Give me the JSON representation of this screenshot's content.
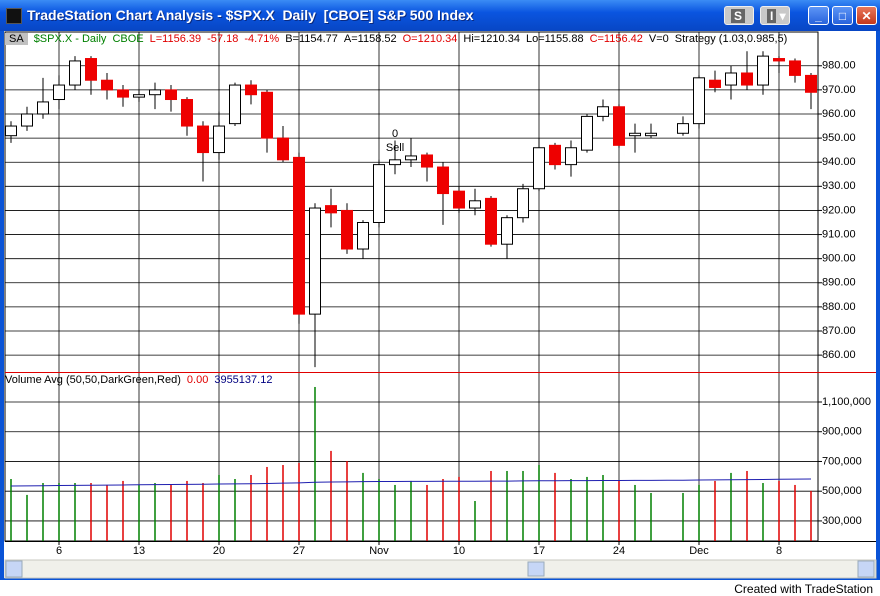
{
  "window": {
    "title": "TradeStation Chart Analysis - $SPX.X  Daily  [CBOE] S&P 500 Index",
    "buttons": [
      "S",
      "I"
    ],
    "footer": "Created with TradeStation"
  },
  "chart_data": [
    {
      "type": "candlestick",
      "header_items": [
        {
          "text": "SA",
          "color": "#000000"
        },
        {
          "text": "$SPX.X - Daily",
          "color": "#008000"
        },
        {
          "text": "CBOE",
          "color": "#008000"
        },
        {
          "text": "L=1156.39",
          "color": "#e00000"
        },
        {
          "text": "-57.18",
          "color": "#e00000"
        },
        {
          "text": "-4.71%",
          "color": "#e00000"
        },
        {
          "text": "B=1154.77",
          "color": "#000000"
        },
        {
          "text": "A=1158.52",
          "color": "#000000"
        },
        {
          "text": "O=1210.34",
          "color": "#e00000"
        },
        {
          "text": "Hi=1210.34",
          "color": "#000000"
        },
        {
          "text": "Lo=1155.88",
          "color": "#000000"
        },
        {
          "text": "C=1156.42",
          "color": "#e00000"
        },
        {
          "text": "V=0",
          "color": "#000000"
        },
        {
          "text": "Strategy (1.03,0.985,5)",
          "color": "#000000"
        }
      ],
      "categories": [
        null,
        null,
        null,
        "6",
        null,
        null,
        null,
        null,
        "13",
        null,
        null,
        null,
        null,
        "20",
        null,
        null,
        null,
        null,
        "27",
        null,
        null,
        null,
        null,
        "Nov",
        null,
        null,
        null,
        null,
        "10",
        null,
        null,
        null,
        null,
        "17",
        null,
        null,
        null,
        null,
        "24",
        null,
        null,
        null,
        null,
        "Dec",
        null,
        null,
        null,
        null,
        "8",
        null,
        null
      ],
      "open": [
        951,
        955,
        960,
        966,
        972,
        983,
        974,
        970,
        967,
        968,
        970,
        966,
        955,
        944,
        956,
        972,
        969,
        950,
        942,
        877,
        922,
        920,
        904,
        915,
        939,
        941,
        943,
        938,
        928,
        921,
        925,
        906,
        917,
        929,
        947,
        939,
        945,
        959,
        963,
        951,
        951,
        null,
        952,
        956,
        974,
        972,
        977,
        972,
        983,
        982,
        976
      ],
      "high": [
        957,
        963,
        975,
        976,
        984,
        984,
        977,
        972,
        970,
        973,
        972,
        967,
        957,
        961,
        973,
        974,
        970,
        955,
        944,
        923,
        929,
        923,
        916,
        941,
        949,
        950,
        944,
        940,
        930,
        929,
        926,
        918,
        931,
        950,
        948,
        949,
        960,
        966,
        964,
        956,
        956,
        null,
        959,
        976,
        978,
        980,
        986,
        986,
        984,
        983,
        977
      ],
      "low": [
        948,
        953,
        958,
        962,
        970,
        968,
        966,
        963,
        965,
        962,
        961,
        951,
        932,
        941,
        955,
        964,
        944,
        940,
        873,
        855,
        913,
        902,
        900,
        913,
        935,
        938,
        932,
        914,
        919,
        918,
        905,
        900,
        915,
        928,
        937,
        934,
        944,
        957,
        946,
        944,
        950,
        null,
        951,
        954,
        969,
        966,
        970,
        968,
        977,
        973,
        962
      ],
      "close": [
        955,
        960,
        965,
        972,
        982,
        974,
        970,
        967,
        968,
        970,
        966,
        955,
        944,
        955,
        972,
        968,
        950,
        941,
        877,
        921,
        919,
        904,
        915,
        939,
        941,
        942.6,
        938,
        927,
        921,
        924,
        906,
        917,
        929,
        946,
        939,
        946,
        959,
        963,
        947,
        952,
        952,
        null,
        956,
        975,
        971,
        977,
        972,
        984,
        982,
        976,
        969
      ],
      "up_color": "#ffffff",
      "down_color": "#ee0000",
      "signal": {
        "quantity": 0,
        "label": "Sell"
      },
      "ylim": [
        853,
        994
      ],
      "yticks": [
        {
          "value": 860,
          "label": "860.00"
        },
        {
          "value": 870,
          "label": "870.00"
        },
        {
          "value": 880,
          "label": "880.00"
        },
        {
          "value": 890,
          "label": "890.00"
        },
        {
          "value": 900,
          "label": "900.00"
        },
        {
          "value": 910,
          "label": "910.00"
        },
        {
          "value": 920,
          "label": "920.00"
        },
        {
          "value": 930,
          "label": "930.00"
        },
        {
          "value": 940,
          "label": "940.00"
        },
        {
          "value": 950,
          "label": "950.00"
        },
        {
          "value": 960,
          "label": "960.00"
        },
        {
          "value": 970,
          "label": "970.00"
        },
        {
          "value": 980,
          "label": "980.00"
        }
      ],
      "grid": true
    },
    {
      "type": "volume",
      "header_items": [
        {
          "text": "Volume Avg (50,50,DarkGreen,Red)",
          "color": "#000000"
        },
        {
          "text": "0.00",
          "color": "#e00000"
        },
        {
          "text": "3955137.12",
          "color": "#000080"
        }
      ],
      "series": [
        {
          "values": [
            582000,
            475000,
            555000,
            555000,
            555000,
            555000,
            542000,
            569000,
            542000,
            555000,
            542000,
            569000,
            555000,
            609000,
            582000,
            609000,
            663000,
            676000,
            690000,
            1201000,
            771000,
            703000,
            623000,
            582000,
            542000,
            569000,
            542000,
            582000,
            596000,
            434000,
            636000,
            636000,
            636000,
            676000,
            623000,
            582000,
            596000,
            609000,
            569000,
            542000,
            488000,
            null,
            488000,
            542000,
            569000,
            623000,
            636000,
            555000,
            569000,
            542000,
            502000
          ],
          "up_color": "#008000",
          "down_color": "#e00000"
        },
        {
          "values": [
            535000,
            536000,
            537000,
            538000,
            539000,
            540000,
            541000,
            542000,
            543000,
            544000,
            545000,
            546000,
            547000,
            548000,
            549000,
            550000,
            552000,
            554000,
            556000,
            560000,
            562000,
            563000,
            564000,
            565000,
            565000,
            566000,
            566000,
            567000,
            567000,
            567000,
            568000,
            568000,
            569000,
            570000,
            570000,
            571000,
            571000,
            572000,
            572000,
            573000,
            573000,
            574000,
            574000,
            575000,
            576000,
            577000,
            578000,
            579000,
            580000,
            581000,
            582000
          ],
          "color": "#2020b0"
        }
      ],
      "ylim": [
        165000,
        1295000
      ],
      "yticks": [
        {
          "value": 300000,
          "label": "300,000"
        },
        {
          "value": 500000,
          "label": "500,000"
        },
        {
          "value": 700000,
          "label": "700,000"
        },
        {
          "value": 900000,
          "label": "900,000"
        },
        {
          "value": 1100000,
          "label": "1,100,000"
        }
      ],
      "grid": true
    }
  ]
}
